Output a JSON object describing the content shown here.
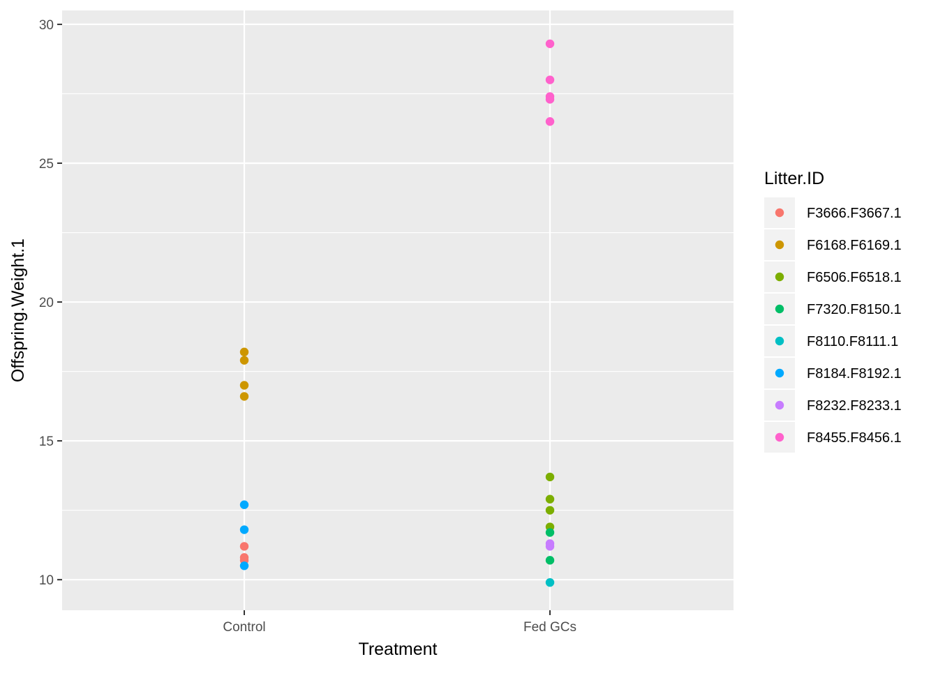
{
  "chart_data": {
    "type": "scatter",
    "title": "",
    "xlabel": "Treatment",
    "ylabel": "Offspring.Weight.1",
    "categories": [
      "Control",
      "Fed GCs"
    ],
    "ylim": [
      8.9,
      30.5
    ],
    "yticks": [
      10,
      15,
      20,
      25,
      30
    ],
    "grid": true,
    "legend": {
      "title": "Litter.ID",
      "position": "right"
    },
    "series": [
      {
        "name": "F3666.F3667.1",
        "color": "#F8766D",
        "points": [
          {
            "x": "Control",
            "y": 11.2
          },
          {
            "x": "Control",
            "y": 10.8
          },
          {
            "x": "Control",
            "y": 10.7
          }
        ]
      },
      {
        "name": "F6168.F6169.1",
        "color": "#CD9600",
        "points": [
          {
            "x": "Control",
            "y": 18.2
          },
          {
            "x": "Control",
            "y": 17.9
          },
          {
            "x": "Control",
            "y": 17.0
          },
          {
            "x": "Control",
            "y": 16.6
          }
        ]
      },
      {
        "name": "F6506.F6518.1",
        "color": "#7CAE00",
        "points": [
          {
            "x": "Fed GCs",
            "y": 13.7
          },
          {
            "x": "Fed GCs",
            "y": 12.9
          },
          {
            "x": "Fed GCs",
            "y": 12.5
          },
          {
            "x": "Fed GCs",
            "y": 11.9
          }
        ]
      },
      {
        "name": "F7320.F8150.1",
        "color": "#00BE67",
        "points": [
          {
            "x": "Fed GCs",
            "y": 11.7
          },
          {
            "x": "Fed GCs",
            "y": 10.7
          }
        ]
      },
      {
        "name": "F8110.F8111.1",
        "color": "#00BFC4",
        "points": [
          {
            "x": "Fed GCs",
            "y": 9.9
          }
        ]
      },
      {
        "name": "F8184.F8192.1",
        "color": "#00A9FF",
        "points": [
          {
            "x": "Control",
            "y": 12.7
          },
          {
            "x": "Control",
            "y": 11.8
          },
          {
            "x": "Control",
            "y": 10.5
          }
        ]
      },
      {
        "name": "F8232.F8233.1",
        "color": "#C77CFF",
        "points": [
          {
            "x": "Fed GCs",
            "y": 11.3
          },
          {
            "x": "Fed GCs",
            "y": 11.2
          }
        ]
      },
      {
        "name": "F8455.F8456.1",
        "color": "#FF61CC",
        "points": [
          {
            "x": "Fed GCs",
            "y": 29.3
          },
          {
            "x": "Fed GCs",
            "y": 28.0
          },
          {
            "x": "Fed GCs",
            "y": 27.4
          },
          {
            "x": "Fed GCs",
            "y": 27.3
          },
          {
            "x": "Fed GCs",
            "y": 26.5
          }
        ]
      }
    ]
  }
}
